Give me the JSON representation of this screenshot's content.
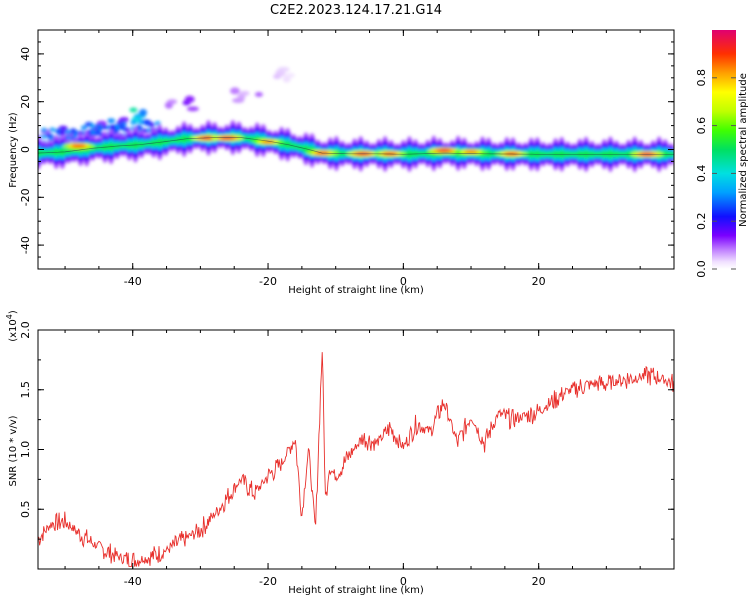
{
  "title": "C2E2.2023.124.17.21.G14",
  "chart_data": [
    {
      "type": "heatmap",
      "xlabel": "Height of straight line (km)",
      "ylabel": "Frequency (Hz)",
      "xlim": [
        -54,
        40
      ],
      "ylim": [
        -50,
        50
      ],
      "x_ticks": [
        -40,
        -20,
        0,
        20
      ],
      "y_ticks": [
        -40,
        -20,
        0,
        20,
        40
      ],
      "colorbar": {
        "label": "Normalized spectral amplitude",
        "range": [
          0.0,
          1.0
        ],
        "ticks": [
          0.0,
          0.2,
          0.4,
          0.6,
          0.8
        ]
      },
      "ridge": {
        "height_km": [
          -54,
          -50,
          -46,
          -42,
          -39,
          -36,
          -32,
          -28,
          -24,
          -20,
          -17,
          -14,
          -12,
          -8,
          -4,
          0,
          6,
          12,
          20,
          30,
          39
        ],
        "frequency_hz": [
          -1.5,
          -1.0,
          0.5,
          1.5,
          2.0,
          3.0,
          4.5,
          5.0,
          5.0,
          3.5,
          2.0,
          0.0,
          -1.5,
          -1.8,
          -1.8,
          -2.0,
          -1.5,
          -1.8,
          -2.0,
          -2.0,
          -2.0
        ]
      },
      "hot_spots": [
        {
          "height_km": -48,
          "frequency_hz": 1.5,
          "amplitude": 0.9
        },
        {
          "height_km": -29,
          "frequency_hz": 4.8,
          "amplitude": 0.95
        },
        {
          "height_km": -26,
          "frequency_hz": 4.8,
          "amplitude": 0.95
        },
        {
          "height_km": -20,
          "frequency_hz": 3.2,
          "amplitude": 0.85
        },
        {
          "height_km": -12,
          "frequency_hz": -1.5,
          "amplitude": 0.9
        },
        {
          "height_km": -6,
          "frequency_hz": -1.8,
          "amplitude": 0.95
        },
        {
          "height_km": -2,
          "frequency_hz": -1.8,
          "amplitude": 0.9
        },
        {
          "height_km": 6,
          "frequency_hz": -0.5,
          "amplitude": 0.95
        },
        {
          "height_km": 10,
          "frequency_hz": -1.0,
          "amplitude": 0.85
        },
        {
          "height_km": 16,
          "frequency_hz": -1.8,
          "amplitude": 0.9
        },
        {
          "height_km": 36,
          "frequency_hz": -2.0,
          "amplitude": 0.95
        }
      ],
      "scatter_patches": [
        {
          "height_km": -38,
          "frequency_hz": 14,
          "amplitude": 0.45
        },
        {
          "height_km": -42,
          "frequency_hz": 10,
          "amplitude": 0.3
        },
        {
          "height_km": -46,
          "frequency_hz": 9,
          "amplitude": 0.25
        },
        {
          "height_km": -51,
          "frequency_hz": 6,
          "amplitude": 0.2
        },
        {
          "height_km": -33,
          "frequency_hz": 19,
          "amplitude": 0.15
        },
        {
          "height_km": -23,
          "frequency_hz": 23,
          "amplitude": 0.1
        },
        {
          "height_km": -17,
          "frequency_hz": 31,
          "amplitude": 0.05
        }
      ]
    },
    {
      "type": "line",
      "xlabel": "Height of straight line (km)",
      "ylabel": "SNR (10 * v/v)",
      "ylabel_multiplier": "(x10",
      "ylabel_multiplier_exp": "4",
      "ylabel_multiplier_close": ")",
      "xlim": [
        -54,
        40
      ],
      "ylim": [
        0,
        2.0
      ],
      "x_ticks": [
        -40,
        -20,
        0,
        20
      ],
      "y_ticks": [
        0.5,
        1.0,
        1.5,
        2.0
      ],
      "y_tick_labels": [
        "0.5",
        "1.0",
        "1.5",
        "2.0"
      ],
      "series": [
        {
          "color": "#e8302c",
          "x": [
            -54,
            -52,
            -50,
            -48,
            -46,
            -44,
            -42,
            -40,
            -38,
            -36,
            -34,
            -32,
            -30,
            -28,
            -26,
            -24,
            -22,
            -20,
            -18,
            -16,
            -15,
            -14,
            -13,
            -12,
            -11.5,
            -11,
            -10,
            -8,
            -6,
            -4,
            -2,
            0,
            2,
            4,
            6,
            8,
            10,
            12,
            14,
            16,
            18,
            20,
            22,
            24,
            26,
            28,
            30,
            32,
            34,
            36,
            38,
            40
          ],
          "y": [
            0.25,
            0.38,
            0.4,
            0.3,
            0.22,
            0.15,
            0.1,
            0.07,
            0.09,
            0.13,
            0.19,
            0.26,
            0.33,
            0.45,
            0.6,
            0.75,
            0.63,
            0.78,
            0.88,
            1.1,
            0.45,
            1.02,
            0.3,
            1.85,
            0.55,
            0.85,
            0.78,
            0.95,
            1.1,
            1.05,
            1.18,
            1.02,
            1.22,
            1.15,
            1.4,
            1.05,
            1.28,
            1.05,
            1.3,
            1.25,
            1.28,
            1.32,
            1.4,
            1.48,
            1.52,
            1.55,
            1.55,
            1.58,
            1.6,
            1.62,
            1.6,
            1.55
          ]
        }
      ]
    }
  ]
}
